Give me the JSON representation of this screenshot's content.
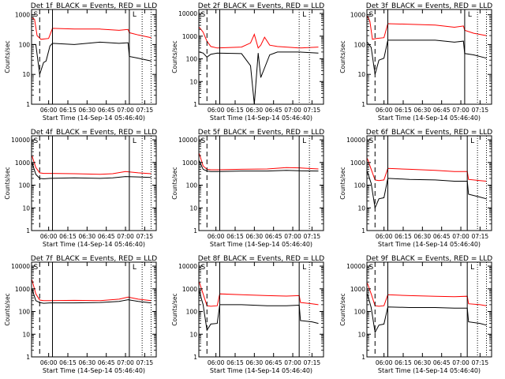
{
  "colors": {
    "events": "#000000",
    "lld": "#ff0000",
    "frame": "#000000",
    "background": "#ffffff"
  },
  "xlabel": "Start Time (14-Sep-14 05:46:40)",
  "ylabel": "Counts/sec",
  "x_ticks": [
    "06:00",
    "06:15",
    "06:30",
    "06:45",
    "07:00",
    "07:15"
  ],
  "y_ticks": [
    "1",
    "10",
    "100",
    "1000",
    "10000"
  ],
  "chart_data": [
    {
      "type": "line",
      "title": "Det 1f_BLACK = Events, RED = LLD",
      "scale": "log",
      "xlim": [
        "05:46:40",
        "07:24:00"
      ],
      "ylim": [
        1,
        1500
      ],
      "y_ticks": [
        "1",
        "10",
        "100",
        "1000"
      ],
      "series": [
        {
          "color": "#000000",
          "x": [
            "05:47",
            "05:50",
            "05:53",
            "05:56",
            "05:58",
            "06:01",
            "06:03",
            "06:20",
            "06:40",
            "06:55",
            "07:02",
            "07:03",
            "07:10",
            "07:20"
          ],
          "values": [
            100,
            100,
            10,
            25,
            28,
            90,
            110,
            100,
            120,
            110,
            115,
            40,
            35,
            28
          ]
        },
        {
          "color": "#ff0000",
          "x": [
            "05:47",
            "05:49",
            "05:51",
            "05:54",
            "06:00",
            "06:03",
            "06:20",
            "06:40",
            "06:55",
            "07:02",
            "07:03",
            "07:10",
            "07:20"
          ],
          "values": [
            800,
            700,
            200,
            150,
            160,
            350,
            330,
            330,
            300,
            320,
            250,
            210,
            170
          ]
        }
      ],
      "annotations": [
        "S",
        "L"
      ],
      "vlines": {
        "dashed": [
          "05:53"
        ],
        "solid": [
          "06:03",
          "07:03"
        ],
        "dotted": [
          "07:13",
          "07:20"
        ]
      }
    },
    {
      "type": "line",
      "title": "Det 2f_BLACK = Events, RED = LLD",
      "scale": "log",
      "xlim": [
        "05:46:40",
        "07:24:00"
      ],
      "ylim": [
        1,
        15000
      ],
      "y_ticks": [
        "1",
        "10",
        "100",
        "1000",
        "10000"
      ],
      "series": [
        {
          "color": "#000000",
          "x": [
            "05:47",
            "05:50",
            "05:53",
            "05:56",
            "06:01",
            "06:20",
            "06:27",
            "06:30",
            "06:33",
            "06:35",
            "06:38",
            "06:42",
            "06:48",
            "07:05",
            "07:20"
          ],
          "values": [
            200,
            180,
            120,
            160,
            180,
            170,
            50,
            1,
            180,
            15,
            40,
            150,
            200,
            200,
            180
          ]
        },
        {
          "color": "#ff0000",
          "x": [
            "05:47",
            "05:50",
            "05:53",
            "05:56",
            "06:01",
            "06:20",
            "06:27",
            "06:30",
            "06:33",
            "06:35",
            "06:38",
            "06:42",
            "06:48",
            "07:05",
            "07:20"
          ],
          "values": [
            2500,
            1500,
            600,
            350,
            300,
            330,
            500,
            1200,
            300,
            400,
            900,
            400,
            350,
            300,
            330
          ]
        }
      ],
      "annotations": [
        "S",
        "L"
      ],
      "vlines": {
        "dashed": [
          "05:53"
        ],
        "solid": [
          "06:03"
        ],
        "dotted": [
          "07:05",
          "07:13"
        ]
      }
    },
    {
      "type": "line",
      "title": "Det 3f_BLACK = Events, RED = LLD",
      "scale": "log",
      "xlim": [
        "05:46:40",
        "07:24:00"
      ],
      "ylim": [
        1,
        1500
      ],
      "y_ticks": [
        "1",
        "10",
        "100",
        "1000"
      ],
      "series": [
        {
          "color": "#000000",
          "x": [
            "05:47",
            "05:50",
            "05:53",
            "05:56",
            "06:00",
            "06:03",
            "06:20",
            "06:40",
            "06:55",
            "07:02",
            "07:03",
            "07:10",
            "07:20"
          ],
          "values": [
            120,
            80,
            10,
            30,
            35,
            140,
            140,
            140,
            120,
            130,
            50,
            45,
            35
          ]
        },
        {
          "color": "#ff0000",
          "x": [
            "05:47",
            "05:49",
            "05:51",
            "05:54",
            "06:00",
            "06:03",
            "06:20",
            "06:40",
            "06:55",
            "07:02",
            "07:03",
            "07:10",
            "07:20"
          ],
          "values": [
            900,
            600,
            150,
            160,
            170,
            500,
            480,
            450,
            380,
            420,
            300,
            240,
            200
          ]
        }
      ],
      "annotations": [
        "S",
        "L"
      ],
      "vlines": {
        "dashed": [
          "05:53"
        ],
        "solid": [
          "06:03",
          "07:03"
        ],
        "dotted": [
          "07:13",
          "07:20"
        ]
      }
    },
    {
      "type": "line",
      "title": "Det 4f_BLACK = Events, RED = LLD",
      "scale": "log",
      "xlim": [
        "05:46:40",
        "07:24:00"
      ],
      "ylim": [
        1,
        15000
      ],
      "y_ticks": [
        "1",
        "10",
        "100",
        "1000",
        "10000"
      ],
      "series": [
        {
          "color": "#000000",
          "x": [
            "05:47",
            "05:50",
            "05:53",
            "05:56",
            "06:01",
            "06:20",
            "06:40",
            "06:50",
            "07:00",
            "07:10",
            "07:20"
          ],
          "values": [
            1000,
            300,
            200,
            190,
            200,
            210,
            200,
            210,
            240,
            230,
            220
          ]
        },
        {
          "color": "#ff0000",
          "x": [
            "05:47",
            "05:50",
            "05:53",
            "05:56",
            "06:01",
            "06:20",
            "06:40",
            "06:50",
            "07:00",
            "07:10",
            "07:20"
          ],
          "values": [
            2000,
            600,
            350,
            330,
            330,
            320,
            300,
            320,
            400,
            350,
            320
          ]
        }
      ],
      "annotations": [
        "S",
        "L"
      ],
      "vlines": {
        "dashed": [
          "05:53"
        ],
        "solid": [
          "06:03",
          "07:03"
        ],
        "dotted": [
          "07:13",
          "07:20"
        ]
      }
    },
    {
      "type": "line",
      "title": "Det 5f_BLACK = Events, RED = LLD",
      "scale": "log",
      "xlim": [
        "05:46:40",
        "07:24:00"
      ],
      "ylim": [
        1,
        15000
      ],
      "y_ticks": [
        "1",
        "10",
        "100",
        "1000",
        "10000"
      ],
      "series": [
        {
          "color": "#000000",
          "x": [
            "05:47",
            "05:50",
            "05:53",
            "05:56",
            "06:01",
            "06:20",
            "06:40",
            "06:55",
            "07:05",
            "07:20"
          ],
          "values": [
            1200,
            500,
            420,
            400,
            400,
            420,
            420,
            450,
            430,
            420
          ]
        },
        {
          "color": "#ff0000",
          "x": [
            "05:47",
            "05:50",
            "05:53",
            "05:56",
            "06:01",
            "06:20",
            "06:40",
            "06:55",
            "07:05",
            "07:20"
          ],
          "values": [
            2500,
            700,
            500,
            480,
            480,
            500,
            520,
            600,
            580,
            520
          ]
        }
      ],
      "annotations": [
        "S",
        "L"
      ],
      "vlines": {
        "dashed": [
          "05:53"
        ],
        "solid": [
          "06:03",
          "07:05"
        ],
        "dotted": [
          "07:13"
        ]
      }
    },
    {
      "type": "line",
      "title": "Det 6f_BLACK = Events, RED = LLD",
      "scale": "log",
      "xlim": [
        "05:46:40",
        "07:24:00"
      ],
      "ylim": [
        1,
        15000
      ],
      "y_ticks": [
        "1",
        "10",
        "100",
        "1000",
        "10000"
      ],
      "series": [
        {
          "color": "#000000",
          "x": [
            "05:47",
            "05:50",
            "05:53",
            "05:56",
            "06:00",
            "06:03",
            "06:20",
            "06:40",
            "06:55",
            "07:05",
            "07:06",
            "07:15",
            "07:20"
          ],
          "values": [
            400,
            120,
            10,
            25,
            28,
            200,
            180,
            170,
            150,
            150,
            40,
            30,
            25
          ]
        },
        {
          "color": "#ff0000",
          "x": [
            "05:47",
            "05:50",
            "05:53",
            "05:56",
            "06:00",
            "06:03",
            "06:20",
            "06:40",
            "06:55",
            "07:05",
            "07:06",
            "07:15",
            "07:20"
          ],
          "values": [
            1500,
            500,
            170,
            160,
            170,
            550,
            500,
            450,
            400,
            400,
            180,
            160,
            150
          ]
        }
      ],
      "annotations": [
        "S",
        "L"
      ],
      "vlines": {
        "dashed": [
          "05:53"
        ],
        "solid": [
          "06:03",
          "07:05"
        ],
        "dotted": [
          "07:13",
          "07:20"
        ]
      }
    },
    {
      "type": "line",
      "title": "Det 7f_BLACK = Events, RED = LLD",
      "scale": "log",
      "xlim": [
        "05:46:40",
        "07:24:00"
      ],
      "ylim": [
        1,
        15000
      ],
      "y_ticks": [
        "1",
        "10",
        "100",
        "1000",
        "10000"
      ],
      "series": [
        {
          "color": "#000000",
          "x": [
            "05:47",
            "05:50",
            "05:53",
            "05:56",
            "06:01",
            "06:20",
            "06:40",
            "06:55",
            "07:02",
            "07:10",
            "07:20"
          ],
          "values": [
            1000,
            300,
            250,
            230,
            240,
            240,
            250,
            280,
            330,
            280,
            240
          ]
        },
        {
          "color": "#ff0000",
          "x": [
            "05:47",
            "05:50",
            "05:53",
            "05:56",
            "06:01",
            "06:20",
            "06:40",
            "06:55",
            "07:02",
            "07:10",
            "07:20"
          ],
          "values": [
            2500,
            600,
            320,
            300,
            300,
            310,
            300,
            350,
            430,
            350,
            300
          ]
        }
      ],
      "annotations": [
        "S",
        "L"
      ],
      "vlines": {
        "dashed": [
          "05:53"
        ],
        "solid": [
          "06:03",
          "07:03"
        ],
        "dotted": [
          "07:13",
          "07:20"
        ]
      }
    },
    {
      "type": "line",
      "title": "Det 8f_BLACK = Events, RED = LLD",
      "scale": "log",
      "xlim": [
        "05:46:40",
        "07:24:00"
      ],
      "ylim": [
        1,
        15000
      ],
      "y_ticks": [
        "1",
        "10",
        "100",
        "1000",
        "10000"
      ],
      "series": [
        {
          "color": "#000000",
          "x": [
            "05:47",
            "05:50",
            "05:53",
            "05:56",
            "06:01",
            "06:03",
            "06:20",
            "06:40",
            "06:55",
            "07:05",
            "07:06",
            "07:15",
            "07:20"
          ],
          "values": [
            800,
            200,
            15,
            28,
            30,
            200,
            200,
            180,
            180,
            190,
            40,
            35,
            30
          ]
        },
        {
          "color": "#ff0000",
          "x": [
            "05:47",
            "05:50",
            "05:53",
            "05:56",
            "06:01",
            "06:03",
            "06:20",
            "06:40",
            "06:55",
            "07:05",
            "07:06",
            "07:15",
            "07:20"
          ],
          "values": [
            2000,
            600,
            180,
            170,
            180,
            600,
            550,
            500,
            480,
            500,
            250,
            220,
            200
          ]
        }
      ],
      "annotations": [
        "S",
        "L"
      ],
      "vlines": {
        "dashed": [
          "05:53"
        ],
        "solid": [
          "06:03",
          "07:05"
        ],
        "dotted": [
          "07:13"
        ]
      }
    },
    {
      "type": "line",
      "title": "Det 9f_BLACK = Events, RED = LLD",
      "scale": "log",
      "xlim": [
        "05:46:40",
        "07:24:00"
      ],
      "ylim": [
        1,
        15000
      ],
      "y_ticks": [
        "1",
        "10",
        "100",
        "1000",
        "10000"
      ],
      "series": [
        {
          "color": "#000000",
          "x": [
            "05:47",
            "05:50",
            "05:53",
            "05:56",
            "06:00",
            "06:03",
            "06:20",
            "06:40",
            "06:55",
            "07:05",
            "07:06",
            "07:15",
            "07:20"
          ],
          "values": [
            600,
            150,
            12,
            25,
            28,
            160,
            150,
            150,
            140,
            140,
            35,
            30,
            25
          ]
        },
        {
          "color": "#ff0000",
          "x": [
            "05:47",
            "05:50",
            "05:53",
            "05:56",
            "06:00",
            "06:03",
            "06:20",
            "06:40",
            "06:55",
            "07:05",
            "07:06",
            "07:15",
            "07:20"
          ],
          "values": [
            1800,
            600,
            180,
            170,
            180,
            550,
            500,
            470,
            450,
            470,
            220,
            200,
            180
          ]
        }
      ],
      "annotations": [
        "S",
        "L"
      ],
      "vlines": {
        "dashed": [
          "05:53"
        ],
        "solid": [
          "06:03",
          "07:05"
        ],
        "dotted": [
          "07:13",
          "07:20"
        ]
      }
    }
  ]
}
